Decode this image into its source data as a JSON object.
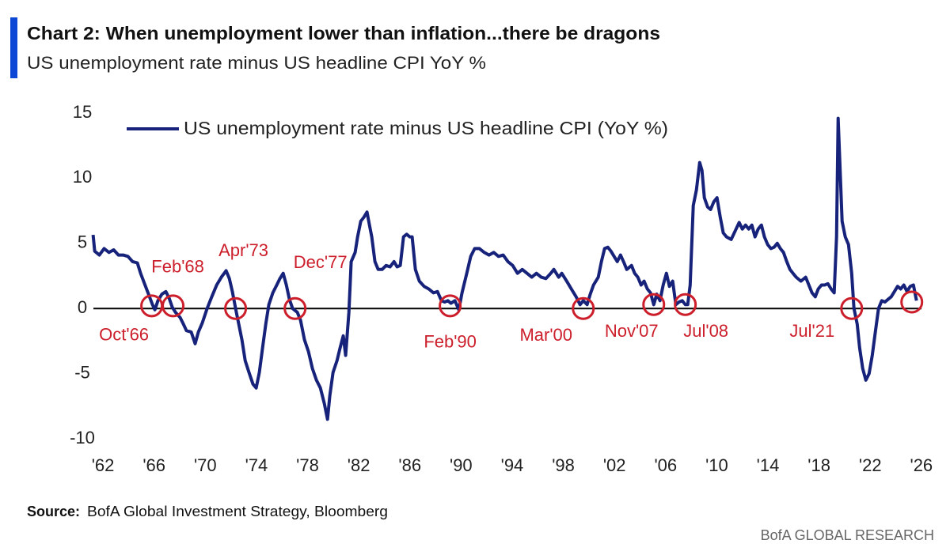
{
  "chart_data": {
    "type": "line",
    "title": "Chart 2: When unemployment lower than inflation...there be dragons",
    "subtitle": "US unemployment rate minus US headline CPI YoY %",
    "source_label": "Source:",
    "source": "BofA Global Investment Strategy, Bloomberg",
    "footer": "BofA GLOBAL RESEARCH",
    "xlim": [
      1961.5,
      2027
    ],
    "ylim": [
      -10,
      15
    ],
    "yticks": [
      -10,
      -5,
      0,
      5,
      10,
      15
    ],
    "xticks": [
      {
        "value": 1962,
        "label": "'62"
      },
      {
        "value": 1966,
        "label": "'66"
      },
      {
        "value": 1970,
        "label": "'70"
      },
      {
        "value": 1974,
        "label": "'74"
      },
      {
        "value": 1978,
        "label": "'78"
      },
      {
        "value": 1982,
        "label": "'82"
      },
      {
        "value": 1986,
        "label": "'86"
      },
      {
        "value": 1990,
        "label": "'90"
      },
      {
        "value": 1994,
        "label": "'94"
      },
      {
        "value": 1998,
        "label": "'98"
      },
      {
        "value": 2002,
        "label": "'02"
      },
      {
        "value": 2006,
        "label": "'06"
      },
      {
        "value": 2010,
        "label": "'10"
      },
      {
        "value": 2014,
        "label": "'14"
      },
      {
        "value": 2018,
        "label": "'18"
      },
      {
        "value": 2022,
        "label": "'22"
      },
      {
        "value": 2026,
        "label": "'26"
      }
    ],
    "legend": "top-left",
    "x": [
      1962.22,
      1962.34,
      1962.71,
      1963.08,
      1963.46,
      1963.83,
      1964.2,
      1964.57,
      1964.94,
      1965.31,
      1965.68,
      1965.93,
      1966.24,
      1966.55,
      1966.86,
      1967.05,
      1967.29,
      1967.6,
      1967.91,
      1968.16,
      1968.41,
      1968.66,
      1969.03,
      1969.28,
      1969.52,
      1969.89,
      1970.2,
      1970.45,
      1970.76,
      1971.13,
      1971.5,
      1971.88,
      1972.25,
      1972.62,
      1972.87,
      1973.11,
      1973.36,
      1973.61,
      1973.86,
      1974.11,
      1974.41,
      1974.72,
      1974.97,
      1975.22,
      1975.47,
      1975.72,
      1975.96,
      1976.27,
      1976.58,
      1976.83,
      1977.08,
      1977.33,
      1977.57,
      1977.82,
      1978.19,
      1978.44,
      1978.75,
      1979.06,
      1979.37,
      1979.68,
      1979.99,
      1980.3,
      1980.55,
      1980.73,
      1980.98,
      1981.29,
      1981.54,
      1981.78,
      1981.97,
      1982.22,
      1982.4,
      1982.71,
      1982.9,
      1983.15,
      1983.39,
      1983.64,
      1983.83,
      1984.01,
      1984.26,
      1984.51,
      1984.82,
      1985.13,
      1985.44,
      1985.75,
      1985.99,
      1986.24,
      1986.49,
      1986.74,
      1986.98,
      1987.17,
      1987.42,
      1987.73,
      1988.1,
      1988.47,
      1988.84,
      1989.15,
      1989.46,
      1989.71,
      1989.96,
      1990.2,
      1990.51,
      1990.82,
      1991.07,
      1991.44,
      1991.75,
      1992.06,
      1992.43,
      1992.81,
      1993.18,
      1993.55,
      1993.92,
      1994.29,
      1994.66,
      1995.03,
      1995.41,
      1995.78,
      1996.15,
      1996.52,
      1996.89,
      1997.26,
      1997.63,
      1998.01,
      1998.25,
      1998.63,
      1998.87,
      1999.25,
      1999.62,
      1999.99,
      2000.3,
      2000.55,
      2000.85,
      2001.1,
      2001.35,
      2001.72,
      2001.97,
      2002.22,
      2002.47,
      2002.71,
      2002.96,
      2003.21,
      2003.46,
      2003.7,
      2003.95,
      2004.32,
      2004.57,
      2004.82,
      2005.07,
      2005.31,
      2005.56,
      2005.81,
      2006.06,
      2006.3,
      2006.55,
      2006.8,
      2007.05,
      2007.29,
      2007.54,
      2007.79,
      2008.04,
      2008.29,
      2008.53,
      2008.72,
      2008.91,
      2009.15,
      2009.4,
      2009.65,
      2009.83,
      2010.02,
      2010.27,
      2010.51,
      2010.76,
      2011.01,
      2011.26,
      2011.5,
      2011.75,
      2012.12,
      2012.5,
      2012.74,
      2012.99,
      2013.24,
      2013.49,
      2013.73,
      2013.98,
      2014.23,
      2014.48,
      2014.72,
      2014.97,
      2015.22,
      2015.47,
      2015.72,
      2015.96,
      2016.21,
      2016.46,
      2016.71,
      2016.95,
      2017.2,
      2017.57,
      2017.94,
      2018.19,
      2018.44,
      2018.69,
      2018.93,
      2019.18,
      2019.43,
      2019.68,
      2019.93,
      2020.17,
      2020.36,
      2020.48,
      2020.67,
      2020.79,
      2021.04,
      2021.29,
      2021.54,
      2021.72,
      2021.97,
      2022.16,
      2022.4,
      2022.65,
      2022.9,
      2023.15,
      2023.39,
      2023.64,
      2023.89,
      2024.14,
      2024.38,
      2024.63,
      2024.88,
      2025.13,
      2025.37,
      2025.62,
      2025.87,
      2026.12,
      2026.37,
      2026.61
    ],
    "series": [
      {
        "name": "US unemployment rate minus US headline CPI (YoY %)",
        "color": "#17237a",
        "values": [
          5.65,
          4.4,
          4.1,
          4.6,
          4.3,
          4.5,
          4.1,
          4.1,
          4.0,
          3.6,
          3.5,
          2.7,
          1.9,
          1.1,
          0.3,
          -0.1,
          0.6,
          1.1,
          1.3,
          0.8,
          0.1,
          -0.3,
          -0.7,
          -1.2,
          -1.7,
          -1.8,
          -2.7,
          -1.8,
          -1.1,
          0,
          0.9,
          1.8,
          2.4,
          2.9,
          2.3,
          1.3,
          0,
          -1.2,
          -2.4,
          -4.0,
          -4.9,
          -5.8,
          -6.1,
          -4.9,
          -3.0,
          -1.2,
          0.3,
          1.2,
          1.8,
          2.3,
          2.7,
          1.8,
          0.7,
          0,
          -0.3,
          -0.9,
          -2.4,
          -3.3,
          -4.6,
          -5.5,
          -6.1,
          -7.3,
          -8.5,
          -6.7,
          -4.9,
          -4.0,
          -3.0,
          -2.1,
          -3.6,
          -0.3,
          3.6,
          4.3,
          5.5,
          6.7,
          7.0,
          7.4,
          6.4,
          5.5,
          3.6,
          3.0,
          3.0,
          3.3,
          3.2,
          3.6,
          3.2,
          3.3,
          5.5,
          5.7,
          5.5,
          5.5,
          3.0,
          2.1,
          1.7,
          1.5,
          1.2,
          1.3,
          0.6,
          0.5,
          0.6,
          0.4,
          0.6,
          -0.1,
          1.2,
          2.7,
          4.0,
          4.6,
          4.6,
          4.3,
          4.1,
          4.3,
          4.0,
          4.1,
          3.6,
          3.3,
          2.7,
          3.0,
          2.7,
          2.4,
          2.7,
          2.4,
          2.3,
          2.7,
          3.0,
          2.4,
          2.7,
          2.1,
          1.5,
          0.9,
          0.3,
          0.6,
          0.3,
          1.1,
          1.8,
          2.4,
          3.6,
          4.6,
          4.7,
          4.4,
          4.0,
          3.6,
          4.1,
          3.6,
          3.0,
          3.3,
          2.7,
          2.4,
          1.8,
          2.1,
          1.5,
          1.2,
          0.3,
          1.1,
          0.6,
          1.8,
          2.7,
          1.7,
          2.1,
          0.3,
          0.5,
          0.6,
          0.3,
          0.3,
          1.8,
          7.9,
          9.1,
          11.2,
          10.6,
          8.5,
          7.8,
          7.6,
          8.2,
          8.5,
          7.0,
          5.8,
          5.5,
          5.3,
          6.1,
          6.6,
          6.1,
          6.4,
          6.1,
          6.4,
          5.5,
          6.1,
          6.4,
          5.5,
          4.9,
          4.6,
          4.7,
          5.0,
          4.6,
          4.3,
          3.6,
          3.0,
          2.7,
          2.4,
          2.1,
          2.4,
          1.8,
          1.2,
          0.9,
          1.5,
          1.8,
          1.8,
          1.9,
          1.5,
          1.2,
          5.5,
          14.6,
          9.7,
          6.7,
          5.5,
          4.9,
          2.7,
          0,
          -1.2,
          -3.0,
          -4.6,
          -5.5,
          -5.0,
          -3.6,
          -1.8,
          0,
          0.6,
          0.5,
          0.7,
          0.9,
          1.3,
          1.7,
          1.5,
          1.8,
          1.3,
          1.7,
          1.8,
          0.6
        ]
      }
    ],
    "annotation_color": "#cc1f2b",
    "annotations": [
      {
        "text": "Oct'66",
        "x": 1966.8,
        "y": 0.2
      },
      {
        "text": "Feb'68",
        "x": 1968.47,
        "y": 0.2
      },
      {
        "text": "Apr'73",
        "x": 1973.36,
        "y": 0
      },
      {
        "text": "Dec'77",
        "x": 1978.01,
        "y": 0
      },
      {
        "text": "Feb'90",
        "x": 1990.14,
        "y": 0.2
      },
      {
        "text": "Mar'00",
        "x": 2000.55,
        "y": 0
      },
      {
        "text": "Nov'07",
        "x": 2006.06,
        "y": 0.3
      },
      {
        "text": "Jul'08",
        "x": 2008.53,
        "y": 0.3
      },
      {
        "text": "Jul'21",
        "x": 2021.54,
        "y": 0
      },
      {
        "x": 2026.24,
        "y": 0.5
      }
    ]
  }
}
